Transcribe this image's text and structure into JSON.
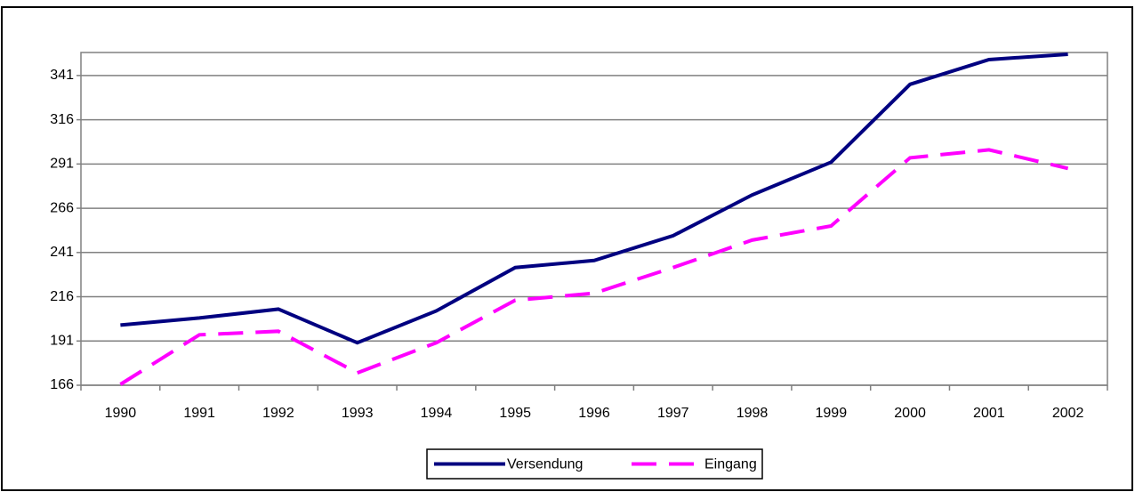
{
  "chart_data": {
    "type": "line",
    "categories": [
      "1990",
      "1991",
      "1992",
      "1993",
      "1994",
      "1995",
      "1996",
      "1997",
      "1998",
      "1999",
      "2000",
      "2001",
      "2002"
    ],
    "series": [
      {
        "name": "Versendung",
        "color": "#000080",
        "dash": false,
        "values": [
          200,
          204,
          209,
          190,
          208,
          232.5,
          236.5,
          250.5,
          273.5,
          292,
          336,
          350,
          353
        ]
      },
      {
        "name": "Eingang",
        "color": "#ff00ff",
        "dash": true,
        "values": [
          166.5,
          194.5,
          196.5,
          173,
          190,
          214,
          218,
          232.5,
          248,
          256,
          294.5,
          299,
          288.5
        ]
      }
    ],
    "ylim": [
      166,
      354
    ],
    "yticks": [
      166,
      191,
      216,
      241,
      266,
      291,
      316,
      341
    ],
    "grid": true,
    "legend": "bottom"
  }
}
